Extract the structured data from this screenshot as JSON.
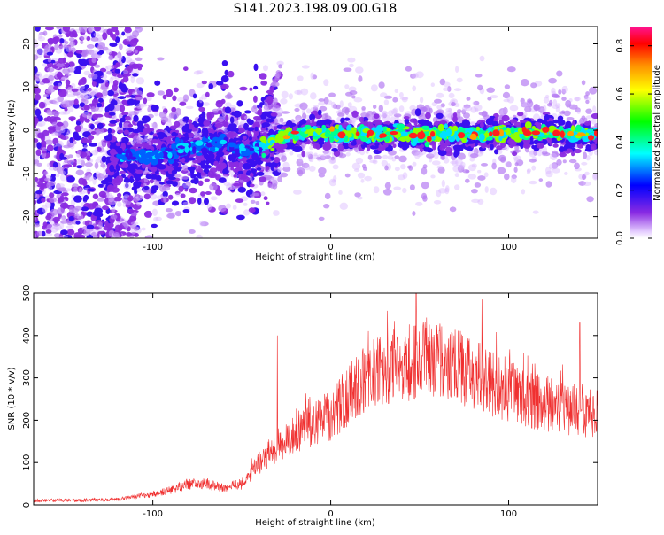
{
  "title": "S141.2023.198.09.00.G18",
  "chart_data": [
    {
      "type": "heatmap",
      "title": "S141.2023.198.09.00.G18",
      "xlabel": "Height of straight line (km)",
      "ylabel": "Frequency (Hz)",
      "xlim": [
        -167,
        150
      ],
      "ylim": [
        -25,
        24
      ],
      "xticks": [
        -100,
        0,
        100
      ],
      "yticks": [
        -20,
        -10,
        0,
        10,
        20
      ],
      "colorbar": {
        "label": "Normalized spectral amplitude",
        "range": [
          0.0,
          0.88
        ],
        "ticks": [
          "0.0",
          "0.2",
          "0.4",
          "0.6",
          "0.8"
        ],
        "colormap": [
          "#ffffff",
          "#8a2be2",
          "#0000ff",
          "#00ffff",
          "#00ff00",
          "#ffff00",
          "#ff8c00",
          "#ff0000",
          "#ff1493"
        ]
      },
      "ridge": {
        "description_free": true,
        "x": [
          -117,
          -100,
          -80,
          -60,
          -50,
          -40,
          -30,
          -20,
          -10,
          0,
          20,
          40,
          60,
          80,
          100,
          120,
          150
        ],
        "y": [
          -6,
          -6,
          -4,
          -3,
          -5,
          -4,
          -2,
          -1,
          -0.5,
          -0.8,
          -1,
          -1,
          -1,
          -1,
          -0.5,
          -0.5,
          -1
        ]
      },
      "spur": {
        "x": [
          -37,
          -28
        ],
        "y": [
          5,
          14
        ]
      }
    },
    {
      "type": "line",
      "xlabel": "Height of straight line (km)",
      "ylabel": "SNR (10 * v/v)",
      "xlim": [
        -167,
        150
      ],
      "ylim": [
        0,
        500
      ],
      "xticks": [
        -100,
        0,
        100
      ],
      "yticks": [
        0,
        100,
        200,
        300,
        400,
        500
      ],
      "color": "#f03030",
      "envelope": {
        "x": [
          -167,
          -140,
          -120,
          -110,
          -100,
          -90,
          -80,
          -70,
          -60,
          -50,
          -40,
          -30,
          -20,
          -10,
          0,
          10,
          20,
          30,
          40,
          50,
          60,
          70,
          80,
          90,
          100,
          110,
          120,
          130,
          140,
          150
        ],
        "y": [
          10,
          11,
          13,
          20,
          25,
          35,
          50,
          50,
          40,
          50,
          100,
          140,
          170,
          190,
          210,
          260,
          300,
          320,
          330,
          340,
          340,
          330,
          310,
          290,
          270,
          250,
          240,
          230,
          220,
          215
        ]
      },
      "spikes": [
        {
          "x": -30,
          "y": 400
        },
        {
          "x": 48,
          "y": 500
        },
        {
          "x": 85,
          "y": 485
        },
        {
          "x": 140,
          "y": 430
        }
      ]
    }
  ]
}
